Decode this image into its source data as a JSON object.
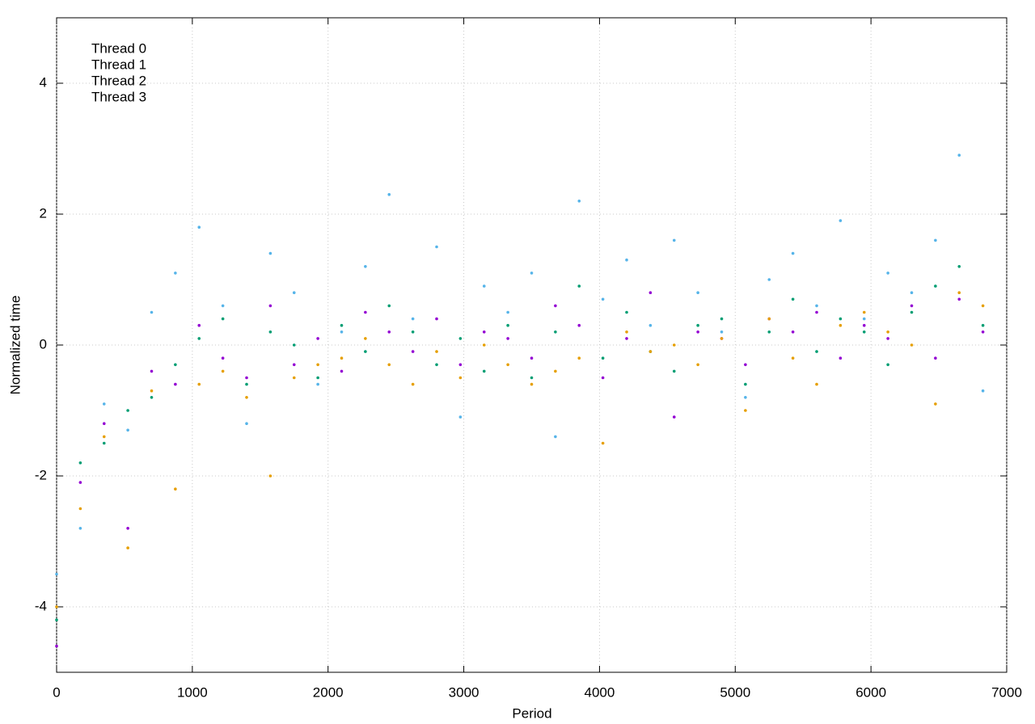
{
  "chart_data": {
    "type": "scatter",
    "xlabel": "Period",
    "ylabel": "Normalized time",
    "xlim": [
      0,
      7000
    ],
    "ylim": [
      -5,
      5
    ],
    "xticks": [
      0,
      1000,
      2000,
      3000,
      4000,
      5000,
      6000,
      7000
    ],
    "yticks": [
      -4,
      -2,
      0,
      2,
      4
    ],
    "grid": true,
    "legend": "top-left",
    "x": [
      0,
      175,
      350,
      525,
      700,
      875,
      1050,
      1225,
      1400,
      1575,
      1750,
      1925,
      2100,
      2275,
      2450,
      2625,
      2800,
      2975,
      3150,
      3325,
      3500,
      3675,
      3850,
      4025,
      4200,
      4375,
      4550,
      4725,
      4900,
      5075,
      5250,
      5425,
      5600,
      5775,
      5950,
      6125,
      6300,
      6475,
      6650,
      6825
    ],
    "series": [
      {
        "name": "Thread 0",
        "color": "#9400d3",
        "values": [
          -4.6,
          -2.1,
          -1.2,
          -2.8,
          -0.4,
          -0.6,
          0.3,
          -0.2,
          -0.5,
          0.6,
          -0.3,
          0.1,
          -0.4,
          0.5,
          0.2,
          -0.1,
          0.4,
          -0.3,
          0.2,
          0.1,
          -0.2,
          0.6,
          0.3,
          -0.5,
          0.1,
          0.8,
          -1.1,
          0.2,
          0.1,
          -0.3,
          0.4,
          0.2,
          0.5,
          -0.2,
          0.3,
          0.1,
          0.6,
          -0.2,
          0.7,
          0.2
        ]
      },
      {
        "name": "Thread 1",
        "color": "#009e73",
        "values": [
          -4.2,
          -1.8,
          -1.5,
          -1.0,
          -0.8,
          -0.3,
          0.1,
          0.4,
          -0.6,
          0.2,
          0.0,
          -0.5,
          0.3,
          -0.1,
          0.6,
          0.2,
          -0.3,
          0.1,
          -0.4,
          0.3,
          -0.5,
          0.2,
          0.9,
          -0.2,
          0.5,
          -0.1,
          -0.4,
          0.3,
          0.4,
          -0.6,
          0.2,
          0.7,
          -0.1,
          0.4,
          0.2,
          -0.3,
          0.5,
          0.9,
          1.2,
          0.3
        ]
      },
      {
        "name": "Thread 2",
        "color": "#56b4e9",
        "values": [
          -3.5,
          -2.8,
          -0.9,
          -1.3,
          0.5,
          1.1,
          1.8,
          0.6,
          -1.2,
          1.4,
          0.8,
          -0.6,
          0.2,
          1.2,
          2.3,
          0.4,
          1.5,
          -1.1,
          0.9,
          0.5,
          1.1,
          -1.4,
          2.2,
          0.7,
          1.3,
          0.3,
          1.6,
          0.8,
          0.2,
          -0.8,
          1.0,
          1.4,
          0.6,
          1.9,
          0.4,
          1.1,
          0.8,
          1.6,
          2.9,
          -0.7
        ]
      },
      {
        "name": "Thread 3",
        "color": "#e69f00",
        "values": [
          -4.0,
          -2.5,
          -1.4,
          -3.1,
          -0.7,
          -2.2,
          -0.6,
          -0.4,
          -0.8,
          -2.0,
          -0.5,
          -0.3,
          -0.2,
          0.1,
          -0.3,
          -0.6,
          -0.1,
          -0.5,
          0.0,
          -0.3,
          -0.6,
          -0.4,
          -0.2,
          -1.5,
          0.2,
          -0.1,
          0.0,
          -0.3,
          0.1,
          -1.0,
          0.4,
          -0.2,
          -0.6,
          0.3,
          0.5,
          0.2,
          0.0,
          -0.9,
          0.8,
          0.6
        ]
      }
    ]
  }
}
